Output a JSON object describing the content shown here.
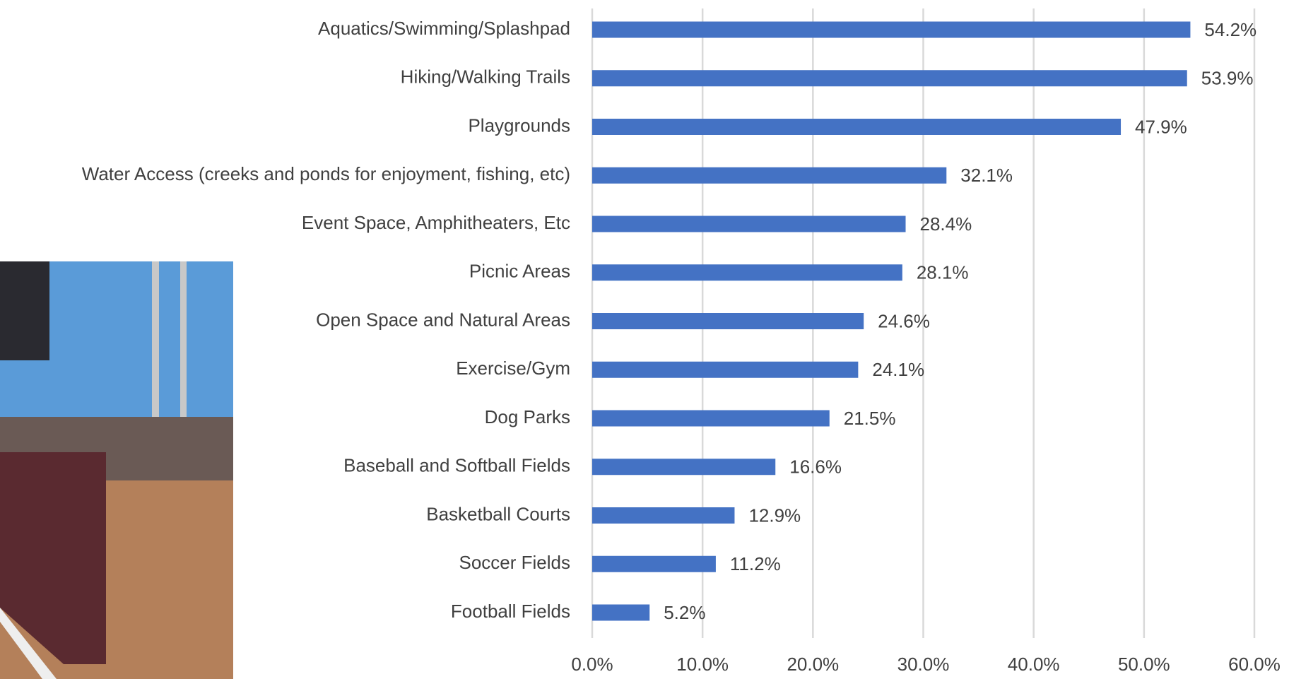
{
  "chart_data": {
    "type": "bar",
    "orientation": "horizontal",
    "categories": [
      "Aquatics/Swimming/Splashpad",
      "Hiking/Walking Trails",
      "Playgrounds",
      "Water Access (creeks and ponds for enjoyment, fishing, etc)",
      "Event Space, Amphitheaters, Etc",
      "Picnic Areas",
      "Open Space and Natural Areas",
      "Exercise/Gym",
      "Dog Parks",
      "Baseball and Softball Fields",
      "Basketball Courts",
      "Soccer Fields",
      "Football Fields"
    ],
    "values": [
      54.2,
      53.9,
      47.9,
      32.1,
      28.4,
      28.1,
      24.6,
      24.1,
      21.5,
      16.6,
      12.9,
      11.2,
      5.2
    ],
    "value_labels": [
      "54.2%",
      "53.9%",
      "47.9%",
      "32.1%",
      "28.4%",
      "28.1%",
      "24.6%",
      "24.1%",
      "21.5%",
      "16.6%",
      "12.9%",
      "11.2%",
      "5.2%"
    ],
    "color": "#4472c4",
    "xlim": [
      0,
      60
    ],
    "xticks": [
      {
        "value": 0,
        "label": "0.0%"
      },
      {
        "value": 10,
        "label": "10.0%"
      },
      {
        "value": 20,
        "label": "20.0%"
      },
      {
        "value": 30,
        "label": "30.0%"
      },
      {
        "value": 40,
        "label": "40.0%"
      },
      {
        "value": 50,
        "label": "50.0%"
      },
      {
        "value": 60,
        "label": "60.0%"
      }
    ],
    "grid": true
  }
}
